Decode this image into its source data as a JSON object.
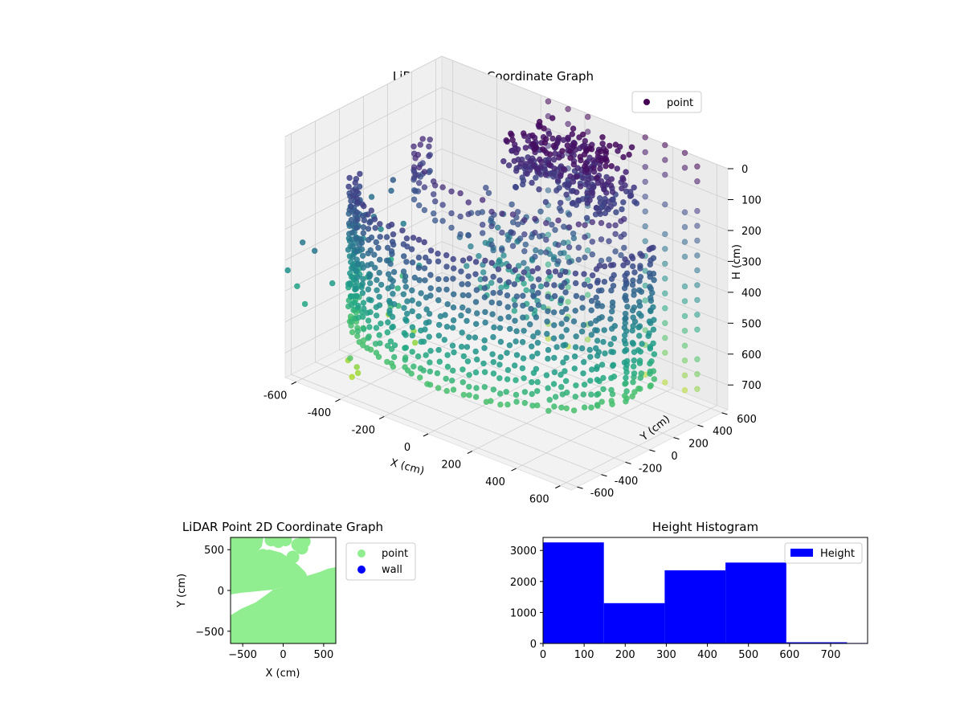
{
  "chart_data": [
    {
      "type": "scatter",
      "projection": "3d",
      "title": "LiDAR Point 3D Coordinate Graph",
      "xlabel": "X (cm)",
      "ylabel": "Y (cm)",
      "zlabel": "H (cm)",
      "xlim": [
        -650,
        650
      ],
      "ylim": [
        -650,
        650
      ],
      "zlim": [
        0,
        780
      ],
      "zinverted": true,
      "xticks": [
        -600,
        -400,
        -200,
        0,
        200,
        400,
        600
      ],
      "yticks": [
        -600,
        -400,
        -200,
        0,
        200,
        400,
        600
      ],
      "zticks": [
        0,
        100,
        200,
        300,
        400,
        500,
        600,
        700
      ],
      "grid": true,
      "colormap": "viridis",
      "legend": {
        "position": "top-right",
        "entries": [
          {
            "label": "point",
            "color": "#440154"
          }
        ]
      },
      "point_groups": [
        {
          "description": "curved wall band",
          "x_range": [
            -600,
            600
          ],
          "y_range": [
            -650,
            250
          ],
          "h_range": [
            150,
            600
          ]
        },
        {
          "description": "upper cluster",
          "x_range": [
            -300,
            300
          ],
          "y_range": [
            100,
            600
          ],
          "h_range": [
            0,
            200
          ]
        },
        {
          "description": "vertical columns",
          "x_range": [
            -200,
            600
          ],
          "y_range": [
            300,
            650
          ],
          "h_range": [
            0,
            780
          ]
        }
      ]
    },
    {
      "type": "scatter",
      "title": "LiDAR Point 2D Coordinate Graph",
      "xlabel": "X (cm)",
      "ylabel": "Y (cm)",
      "xlim": [
        -650,
        650
      ],
      "ylim": [
        -650,
        650
      ],
      "xticks": [
        -500,
        0,
        500
      ],
      "yticks": [
        -500,
        0,
        500
      ],
      "legend": {
        "position": "outside-right",
        "entries": [
          {
            "label": "point",
            "color": "#90ee90"
          },
          {
            "label": "wall",
            "color": "#0000ff"
          }
        ]
      },
      "series": [
        {
          "name": "point",
          "color": "#90ee90"
        },
        {
          "name": "wall",
          "color": "#0000ff"
        }
      ]
    },
    {
      "type": "bar",
      "subtype": "histogram",
      "title": "Height Histogram",
      "xlim": [
        0,
        790
      ],
      "ylim": [
        0,
        3420
      ],
      "xticks": [
        0,
        100,
        200,
        300,
        400,
        500,
        600,
        700
      ],
      "yticks": [
        0,
        1000,
        2000,
        3000
      ],
      "color": "#0000ff",
      "legend": {
        "position": "top-right",
        "entries": [
          {
            "label": "Height",
            "color": "#0000ff"
          }
        ]
      },
      "bins": [
        {
          "start": 0,
          "end": 148,
          "count": 3260
        },
        {
          "start": 148,
          "end": 296,
          "count": 1300
        },
        {
          "start": 296,
          "end": 444,
          "count": 2360
        },
        {
          "start": 444,
          "end": 592,
          "count": 2610
        },
        {
          "start": 592,
          "end": 740,
          "count": 40
        },
        {
          "start": 740,
          "end": 790,
          "count": 15
        }
      ]
    }
  ]
}
